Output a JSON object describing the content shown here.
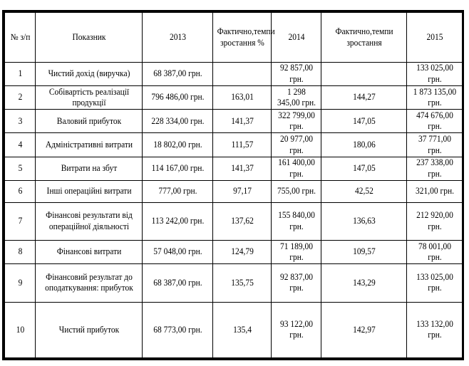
{
  "headers": [
    "№ з/п",
    "Показник",
    "2013",
    "Фактично,темпи зростання %",
    "2014",
    "Фактично,темпи зростання",
    "2015"
  ],
  "rows": [
    [
      "1",
      "Чистий дохід (виручка)",
      "68 387,00 грн.",
      "",
      "92 857,00 грн.",
      "",
      "133 025,00 грн."
    ],
    [
      "2",
      "Собівартість реалізації продукції",
      "796 486,00 грн.",
      "163,01",
      "1 298 345,00 грн.",
      "144,27",
      "1 873 135,00 грн."
    ],
    [
      "3",
      "Валовий прибуток",
      "228 334,00 грн.",
      "141,37",
      "322 799,00 грн.",
      "147,05",
      "474 676,00 грн."
    ],
    [
      "4",
      "Адміністративні витрати",
      "18 802,00 грн.",
      "111,57",
      "20 977,00 грн.",
      "180,06",
      "37 771,00 грн."
    ],
    [
      "5",
      "Витрати на збут",
      "114 167,00 грн.",
      "141,37",
      "161 400,00 грн.",
      "147,05",
      "237 338,00 грн."
    ],
    [
      "6",
      "Інші операційні витрати",
      "777,00 грн.",
      "97,17",
      "755,00 грн.",
      "42,52",
      "321,00 грн."
    ],
    [
      "7",
      "Фінансові результати від операційної діяльності",
      "113 242,00 грн.",
      "137,62",
      "155 840,00 грн.",
      "136,63",
      "212 920,00 грн."
    ],
    [
      "8",
      "Фінансові витрати",
      "57 048,00 грн.",
      "124,79",
      "71 189,00 грн.",
      "109,57",
      "78 001,00 грн."
    ],
    [
      "9",
      "Фінансовий результат до оподаткування: прибуток",
      "68 387,00 грн.",
      "135,75",
      "92 837,00 грн.",
      "143,29",
      "133 025,00 грн."
    ],
    [
      "10",
      "Чистий прибуток",
      "68 773,00 грн.",
      "135,4",
      "93 122,00 грн.",
      "142,97",
      "133 132,00 грн."
    ]
  ]
}
